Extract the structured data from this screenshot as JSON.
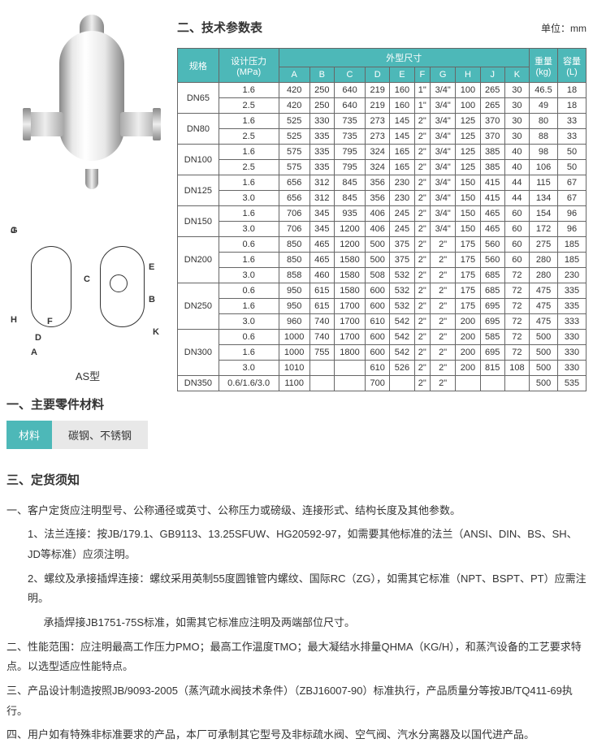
{
  "titles": {
    "spec_table": "二、技术参数表",
    "unit": "单位：mm",
    "materials": "一、主要零件材料",
    "order": "三、定货须知",
    "type_label": "AS型"
  },
  "mat": {
    "h1": "材料",
    "h2": "碳钢、不锈钢"
  },
  "cols": {
    "spec": "规格",
    "pressure": "设计压力\n(MPa)",
    "dims": "外型尺寸",
    "A": "A",
    "B": "B",
    "C": "C",
    "D": "D",
    "E": "E",
    "F": "F",
    "G": "G",
    "H": "H",
    "J": "J",
    "K": "K",
    "weight": "重量\n(kg)",
    "volume": "容量\n(L)"
  },
  "sch": {
    "G": "G",
    "J": "J",
    "C": "C",
    "E": "E",
    "B": "B",
    "H": "H",
    "F": "F",
    "D": "D",
    "A": "A",
    "K": "K"
  },
  "rows": [
    {
      "spec": "DN65",
      "p": "1.6",
      "d": [
        "420",
        "250",
        "640",
        "219",
        "160",
        "1\"",
        "3/4\"",
        "100",
        "265",
        "30"
      ],
      "w": "46.5",
      "v": "18"
    },
    {
      "spec": "",
      "p": "2.5",
      "d": [
        "420",
        "250",
        "640",
        "219",
        "160",
        "1\"",
        "3/4\"",
        "100",
        "265",
        "30"
      ],
      "w": "49",
      "v": "18"
    },
    {
      "spec": "DN80",
      "p": "1.6",
      "d": [
        "525",
        "330",
        "735",
        "273",
        "145",
        "2\"",
        "3/4\"",
        "125",
        "370",
        "30"
      ],
      "w": "80",
      "v": "33"
    },
    {
      "spec": "",
      "p": "2.5",
      "d": [
        "525",
        "335",
        "735",
        "273",
        "145",
        "2\"",
        "3/4\"",
        "125",
        "370",
        "30"
      ],
      "w": "88",
      "v": "33"
    },
    {
      "spec": "DN100",
      "p": "1.6",
      "d": [
        "575",
        "335",
        "795",
        "324",
        "165",
        "2\"",
        "3/4\"",
        "125",
        "385",
        "40"
      ],
      "w": "98",
      "v": "50"
    },
    {
      "spec": "",
      "p": "2.5",
      "d": [
        "575",
        "335",
        "795",
        "324",
        "165",
        "2\"",
        "3/4\"",
        "125",
        "385",
        "40"
      ],
      "w": "106",
      "v": "50"
    },
    {
      "spec": "DN125",
      "p": "1.6",
      "d": [
        "656",
        "312",
        "845",
        "356",
        "230",
        "2\"",
        "3/4\"",
        "150",
        "415",
        "44"
      ],
      "w": "115",
      "v": "67"
    },
    {
      "spec": "",
      "p": "3.0",
      "d": [
        "656",
        "312",
        "845",
        "356",
        "230",
        "2\"",
        "3/4\"",
        "150",
        "415",
        "44"
      ],
      "w": "134",
      "v": "67"
    },
    {
      "spec": "DN150",
      "p": "1.6",
      "d": [
        "706",
        "345",
        "935",
        "406",
        "245",
        "2\"",
        "3/4\"",
        "150",
        "465",
        "60"
      ],
      "w": "154",
      "v": "96"
    },
    {
      "spec": "",
      "p": "3.0",
      "d": [
        "706",
        "345",
        "1200",
        "406",
        "245",
        "2\"",
        "3/4\"",
        "150",
        "465",
        "60"
      ],
      "w": "172",
      "v": "96"
    },
    {
      "spec": "DN200",
      "p": "0.6",
      "d": [
        "850",
        "465",
        "1200",
        "500",
        "375",
        "2\"",
        "2\"",
        "175",
        "560",
        "60"
      ],
      "w": "275",
      "v": "185"
    },
    {
      "spec": "",
      "p": "1.6",
      "d": [
        "850",
        "465",
        "1580",
        "500",
        "375",
        "2\"",
        "2\"",
        "175",
        "560",
        "60"
      ],
      "w": "280",
      "v": "185"
    },
    {
      "spec": "",
      "p": "3.0",
      "d": [
        "858",
        "460",
        "1580",
        "508",
        "532",
        "2\"",
        "2\"",
        "175",
        "685",
        "72"
      ],
      "w": "280",
      "v": "230"
    },
    {
      "spec": "DN250",
      "p": "0.6",
      "d": [
        "950",
        "615",
        "1580",
        "600",
        "532",
        "2\"",
        "2\"",
        "175",
        "685",
        "72"
      ],
      "w": "475",
      "v": "335"
    },
    {
      "spec": "",
      "p": "1.6",
      "d": [
        "950",
        "615",
        "1700",
        "600",
        "532",
        "2\"",
        "2\"",
        "175",
        "695",
        "72"
      ],
      "w": "475",
      "v": "335"
    },
    {
      "spec": "",
      "p": "3.0",
      "d": [
        "960",
        "740",
        "1700",
        "610",
        "542",
        "2\"",
        "2\"",
        "200",
        "695",
        "72"
      ],
      "w": "475",
      "v": "333"
    },
    {
      "spec": "DN300",
      "p": "0.6",
      "d": [
        "1000",
        "740",
        "1700",
        "600",
        "542",
        "2\"",
        "2\"",
        "200",
        "585",
        "72"
      ],
      "w": "500",
      "v": "330"
    },
    {
      "spec": "",
      "p": "1.6",
      "d": [
        "1000",
        "755",
        "1800",
        "600",
        "542",
        "2\"",
        "2\"",
        "200",
        "695",
        "72"
      ],
      "w": "500",
      "v": "330"
    },
    {
      "spec": "",
      "p": "3.0",
      "d": [
        "1010",
        "",
        "",
        "610",
        "526",
        "2\"",
        "2\"",
        "200",
        "815",
        "108"
      ],
      "w": "500",
      "v": "330"
    },
    {
      "spec": "DN350",
      "p": "0.6/1.6/3.0",
      "d": [
        "1100",
        "",
        "",
        "700",
        "",
        "2\"",
        "2\"",
        "",
        "",
        ""
      ],
      "w": "500",
      "v": "535"
    }
  ],
  "order": {
    "l1": "一、客户定货应注明型号、公称通径或英寸、公称压力或磅级、连接形式、结构长度及其他参数。",
    "l1a": "1、法兰连接：按JB/179.1、GB9113、13.25SFUW、HG20592-97，如需要其他标准的法兰（ANSI、DIN、BS、SH、JD等标准）应须注明。",
    "l1b": "2、螺纹及承接插焊连接：螺纹采用英制55度圆锥管内螺纹、国际RC（ZG），如需其它标准（NPT、BSPT、PT）应需注明。",
    "l1c": "承插焊接JB1751-75S标准，如需其它标准应注明及两端部位尺寸。",
    "l2": "二、性能范围：应注明最高工作压力PMO；最高工作温度TMO；最大凝结水排量QHMA（KG/H），和蒸汽设备的工艺要求特点。以选型适应性能特点。",
    "l3": "三、产品设计制造按照JB/9093-2005（蒸汽疏水阀技术条件）（ZBJ16007-90）标准执行，产品质量分等按JB/TQ411-69执行。",
    "l4": "四、用户如有特殊非标准要求的产品，本厂可承制其它型号及非标疏水阀、空气阀、汽水分离器及以国代进产品。"
  }
}
